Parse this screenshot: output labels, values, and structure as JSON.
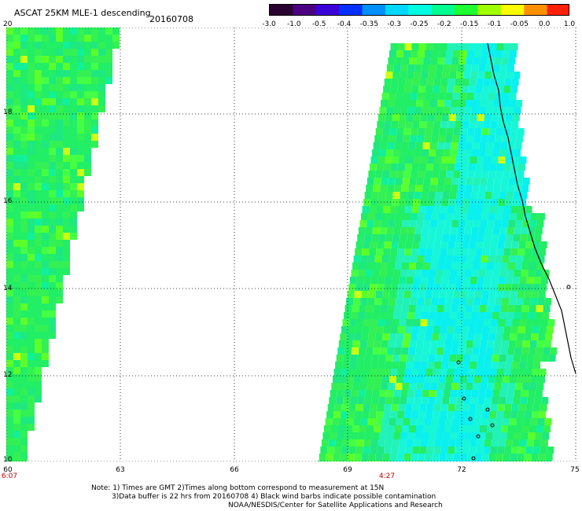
{
  "title": "ASCAT 25KM MLE-1 descending",
  "date": "20160708",
  "colorbar": {
    "ticks": [
      "-3.0",
      "-1.0",
      "-0.5",
      "-0.4",
      "-0.35",
      "-0.3",
      "-0.25",
      "-0.2",
      "-0.15",
      "-0.1",
      "-0.05",
      "0.0",
      "1.0"
    ],
    "colors": [
      "#2a0030",
      "#4b0082",
      "#3a00d8",
      "#0030ff",
      "#0090ff",
      "#00d8ff",
      "#00ffe0",
      "#00ff90",
      "#20ff30",
      "#a0ff00",
      "#ffff00",
      "#ff9000",
      "#ff2000"
    ]
  },
  "map": {
    "lat_range": [
      10,
      20
    ],
    "lon_range": [
      60,
      75
    ],
    "lat_ticks": [
      "20",
      "18",
      "16",
      "14",
      "12",
      "10"
    ],
    "lon_ticks": [
      "60",
      "63",
      "66",
      "69",
      "72",
      "75"
    ],
    "pass_times": [
      "6:07",
      "4:27"
    ]
  },
  "notes": [
    "Note: 1) Times are GMT 2)Times along bottom correspond to measurement at 15N",
    "3)Data buffer is 22 hrs from 20160708 4) Black wind barbs indicate possible contamination",
    "NOAA/NESDIS/Center for Satellite Applications and Research"
  ]
}
